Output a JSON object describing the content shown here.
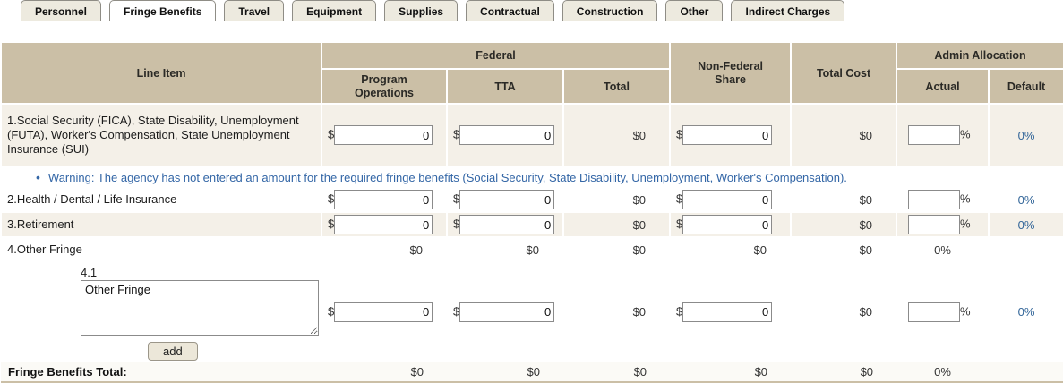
{
  "tabs": [
    {
      "label": "Personnel"
    },
    {
      "label": "Fringe Benefits"
    },
    {
      "label": "Travel"
    },
    {
      "label": "Equipment"
    },
    {
      "label": "Supplies"
    },
    {
      "label": "Contractual"
    },
    {
      "label": "Construction"
    },
    {
      "label": "Other"
    },
    {
      "label": "Indirect Charges"
    }
  ],
  "active_tab": "Fringe Benefits",
  "symbols": {
    "dollar": "$",
    "percent": "%",
    "bullet": "•"
  },
  "header": {
    "line_item": "Line Item",
    "federal": "Federal",
    "program_operations": "Program Operations",
    "tta": "TTA",
    "total": "Total",
    "non_federal_share": "Non-Federal Share",
    "total_cost": "Total Cost",
    "admin_allocation": "Admin Allocation",
    "actual": "Actual",
    "default": "Default"
  },
  "warning": {
    "text": "Warning: The agency has not entered an amount for the required fringe benefits (Social Security, State Disability, Unemployment, Worker's Compensation)."
  },
  "rows": {
    "fica": {
      "label": "1.Social Security (FICA), State Disability, Unemployment (FUTA), Worker's Compensation, State Unemployment Insurance (SUI)",
      "program_ops": "0",
      "tta": "0",
      "total": "$0",
      "non_federal": "0",
      "total_cost": "$0",
      "actual": "",
      "default_pct": "0%"
    },
    "health": {
      "label": "2.Health / Dental / Life Insurance",
      "program_ops": "0",
      "tta": "0",
      "total": "$0",
      "non_federal": "0",
      "total_cost": "$0",
      "actual": "",
      "default_pct": "0%"
    },
    "retirement": {
      "label": "3.Retirement",
      "program_ops": "0",
      "tta": "0",
      "total": "$0",
      "non_federal": "0",
      "total_cost": "$0",
      "actual": "",
      "default_pct": "0%"
    },
    "other_fringe": {
      "label": "4.Other Fringe",
      "program_ops": "$0",
      "tta": "$0",
      "total": "$0",
      "non_federal": "$0",
      "total_cost": "$0",
      "actual": "0%",
      "default_pct": ""
    },
    "other_sub": {
      "number": "4.1",
      "description": "Other Fringe",
      "add_label": "add",
      "program_ops": "0",
      "tta": "0",
      "total": "$0",
      "non_federal": "0",
      "total_cost": "$0",
      "actual": "",
      "default_pct": "0%"
    }
  },
  "total_row": {
    "label": "Fringe Benefits Total:",
    "program_ops": "$0",
    "tta": "$0",
    "total": "$0",
    "non_federal": "$0",
    "total_cost": "$0",
    "actual": "0%",
    "default_pct": ""
  },
  "colors": {
    "header_bg": "#cbbfa6",
    "alt_row_bg": "#f4f0e8",
    "tab_bg": "#edeadf",
    "link_blue": "#336699",
    "warning_blue": "#3366a6"
  }
}
